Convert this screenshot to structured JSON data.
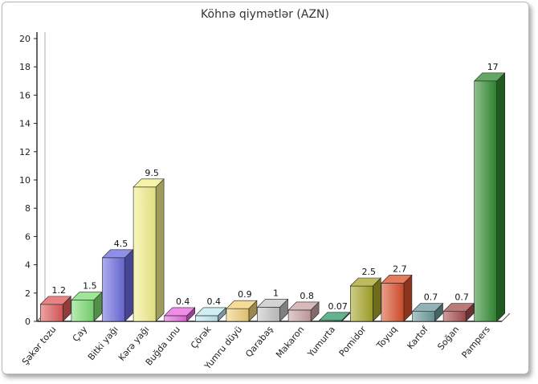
{
  "chart_data": {
    "type": "bar",
    "title": "Köhnə qiymətlər (AZN)",
    "xlabel": "",
    "ylabel": "",
    "ylim": [
      0,
      20
    ],
    "yticks": [
      0,
      2,
      4,
      6,
      8,
      10,
      12,
      14,
      16,
      18,
      20
    ],
    "grid": false,
    "legend": "none",
    "categories": [
      "Şəkər tozu",
      "Çay",
      "Bitki yağı",
      "Kərə yağı",
      "Buğda unu",
      "Çörək",
      "Yumru düyü",
      "Qarabaş",
      "Makaron",
      "Yumurta",
      "Pomidor",
      "Toyuq",
      "Kartof",
      "Soğan",
      "Pampers"
    ],
    "values": [
      1.2,
      1.5,
      4.5,
      9.5,
      0.4,
      0.4,
      0.9,
      1,
      0.8,
      0.07,
      2.5,
      2.7,
      0.7,
      0.7,
      17
    ],
    "value_labels": [
      "1.2",
      "1.5",
      "4.5",
      "9.5",
      "0.4",
      "0.4",
      "0.9",
      "1",
      "0.8",
      "0.07",
      "2.5",
      "2.7",
      "0.7",
      "0.7",
      "17"
    ],
    "colors": [
      "#e05a5a",
      "#7ddc74",
      "#6a6ae0",
      "#f2f08a",
      "#e866e0",
      "#bfeaf0",
      "#f0cf76",
      "#c4c4c4",
      "#c9a2a2",
      "#2f9a6a",
      "#a6a62a",
      "#d8502a",
      "#6c9a9c",
      "#a64c4c",
      "#2f8a2f"
    ]
  }
}
